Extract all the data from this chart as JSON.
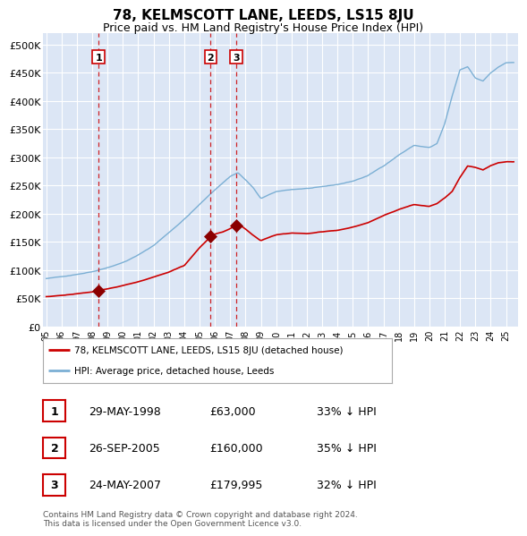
{
  "title": "78, KELMSCOTT LANE, LEEDS, LS15 8JU",
  "subtitle": "Price paid vs. HM Land Registry's House Price Index (HPI)",
  "title_fontsize": 11,
  "subtitle_fontsize": 9,
  "bg_color": "#dce6f5",
  "grid_color": "#ffffff",
  "red_line_color": "#cc0000",
  "blue_line_color": "#7bafd4",
  "dashed_color": "#cc0000",
  "purchases": [
    {
      "date_num": 1998.41,
      "price": 63000,
      "label": "1"
    },
    {
      "date_num": 2005.73,
      "price": 160000,
      "label": "2"
    },
    {
      "date_num": 2007.39,
      "price": 179995,
      "label": "3"
    }
  ],
  "legend_entries": [
    "78, KELMSCOTT LANE, LEEDS, LS15 8JU (detached house)",
    "HPI: Average price, detached house, Leeds"
  ],
  "table_rows": [
    {
      "num": "1",
      "date": "29-MAY-1998",
      "price": "£63,000",
      "pct": "33% ↓ HPI"
    },
    {
      "num": "2",
      "date": "26-SEP-2005",
      "price": "£160,000",
      "pct": "35% ↓ HPI"
    },
    {
      "num": "3",
      "date": "24-MAY-2007",
      "price": "£179,995",
      "pct": "32% ↓ HPI"
    }
  ],
  "footer": "Contains HM Land Registry data © Crown copyright and database right 2024.\nThis data is licensed under the Open Government Licence v3.0.",
  "ylim": [
    0,
    520000
  ],
  "yticks": [
    0,
    50000,
    100000,
    150000,
    200000,
    250000,
    300000,
    350000,
    400000,
    450000,
    500000
  ],
  "ytick_labels": [
    "£0",
    "£50K",
    "£100K",
    "£150K",
    "£200K",
    "£250K",
    "£300K",
    "£350K",
    "£400K",
    "£450K",
    "£500K"
  ],
  "xlim_start": 1994.8,
  "xlim_end": 2025.8,
  "xtick_years": [
    1995,
    1996,
    1997,
    1998,
    1999,
    2000,
    2001,
    2002,
    2003,
    2004,
    2005,
    2006,
    2007,
    2008,
    2009,
    2010,
    2011,
    2012,
    2013,
    2014,
    2015,
    2016,
    2017,
    2018,
    2019,
    2020,
    2021,
    2022,
    2023,
    2024,
    2025
  ]
}
